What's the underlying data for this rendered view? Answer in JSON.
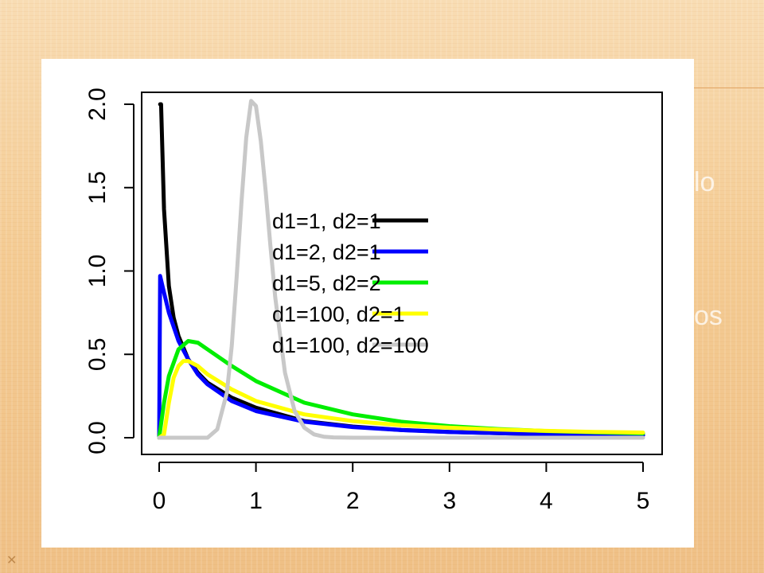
{
  "slide": {
    "corner_mark": "✕",
    "ghost_text_1": "lo",
    "ghost_text_2": "os"
  },
  "chart_data": {
    "type": "line",
    "title": "",
    "xlabel": "",
    "ylabel": "",
    "xlim": [
      0,
      5
    ],
    "ylim": [
      0,
      2
    ],
    "x_ticks": [
      "0",
      "1",
      "2",
      "3",
      "4",
      "5"
    ],
    "y_ticks": [
      "0.0",
      "0.5",
      "1.0",
      "1.5",
      "2.0"
    ],
    "grid": false,
    "legend_position": "right",
    "series": [
      {
        "name": "d1=1, d2=1",
        "color": "#000000",
        "x": [
          0.01,
          0.02,
          0.05,
          0.1,
          0.15,
          0.2,
          0.3,
          0.4,
          0.5,
          0.75,
          1,
          1.5,
          2,
          2.5,
          3,
          3.5,
          4,
          4.5,
          5
        ],
        "y": [
          2.0,
          2.0,
          1.37,
          0.91,
          0.72,
          0.61,
          0.47,
          0.39,
          0.33,
          0.24,
          0.18,
          0.1,
          0.067,
          0.047,
          0.035,
          0.027,
          0.022,
          0.018,
          0.015
        ]
      },
      {
        "name": "d1=2, d2=1",
        "color": "#0000ff",
        "x": [
          0,
          0.01,
          0.05,
          0.1,
          0.2,
          0.3,
          0.4,
          0.5,
          0.75,
          1,
          1.5,
          2,
          2.5,
          3,
          3.5,
          4,
          4.5,
          5
        ],
        "y": [
          0.0,
          0.97,
          0.87,
          0.75,
          0.58,
          0.47,
          0.38,
          0.32,
          0.22,
          0.16,
          0.096,
          0.064,
          0.046,
          0.034,
          0.027,
          0.022,
          0.018,
          0.015
        ]
      },
      {
        "name": "d1=5, d2=2",
        "color": "#00ee00",
        "x": [
          0,
          0.05,
          0.1,
          0.2,
          0.3,
          0.4,
          0.5,
          0.75,
          1,
          1.5,
          2,
          2.5,
          3,
          3.5,
          4,
          4.5,
          5
        ],
        "y": [
          0.0,
          0.21,
          0.37,
          0.53,
          0.58,
          0.57,
          0.53,
          0.43,
          0.34,
          0.21,
          0.14,
          0.096,
          0.069,
          0.052,
          0.04,
          0.032,
          0.026
        ]
      },
      {
        "name": "d1=100, d2=1",
        "color": "#ffff00",
        "x": [
          0,
          0.05,
          0.1,
          0.15,
          0.2,
          0.25,
          0.3,
          0.4,
          0.5,
          0.75,
          1,
          1.5,
          2,
          2.5,
          3,
          3.5,
          4,
          4.5,
          5
        ],
        "y": [
          0.0,
          0.02,
          0.21,
          0.36,
          0.43,
          0.46,
          0.46,
          0.43,
          0.38,
          0.29,
          0.22,
          0.14,
          0.1,
          0.075,
          0.06,
          0.049,
          0.041,
          0.035,
          0.031
        ]
      },
      {
        "name": "d1=100, d2=100",
        "color": "#c8c8c8",
        "x": [
          0,
          0.5,
          0.6,
          0.7,
          0.75,
          0.8,
          0.85,
          0.9,
          0.95,
          1,
          1.05,
          1.1,
          1.15,
          1.2,
          1.3,
          1.4,
          1.5,
          1.6,
          1.7,
          1.8,
          2,
          5
        ],
        "y": [
          0.0,
          0.0,
          0.05,
          0.27,
          0.55,
          0.96,
          1.41,
          1.8,
          2.02,
          1.99,
          1.78,
          1.48,
          1.15,
          0.84,
          0.39,
          0.16,
          0.06,
          0.02,
          0.006,
          0.002,
          0.0,
          0.0
        ]
      }
    ]
  }
}
